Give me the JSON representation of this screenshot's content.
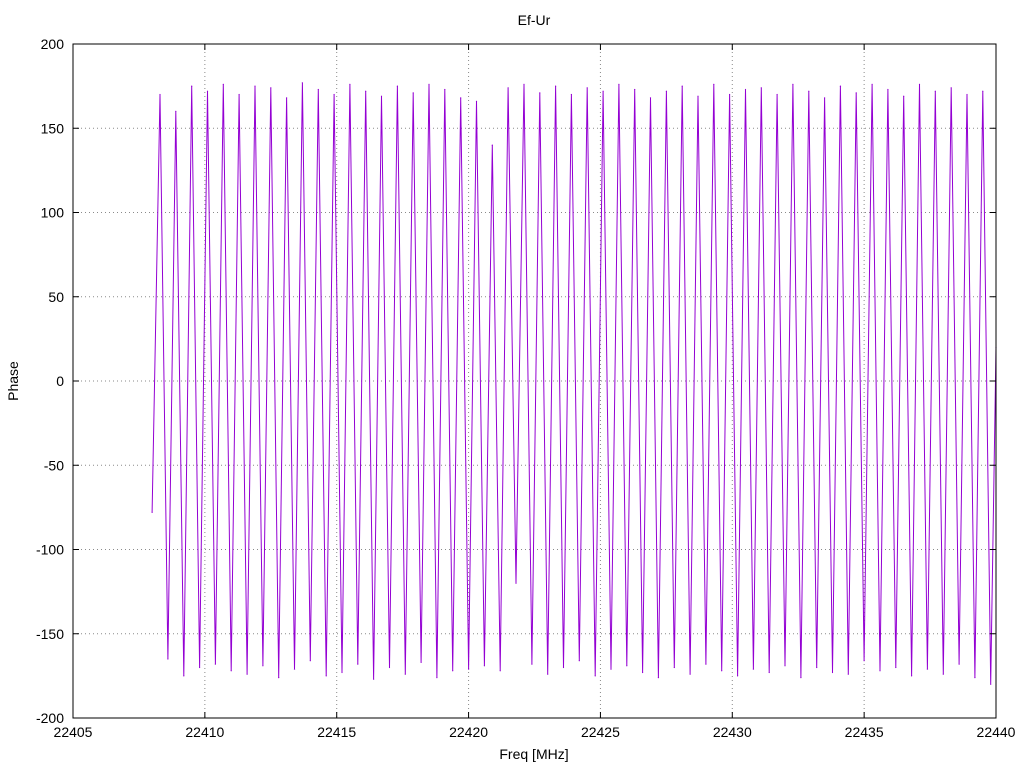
{
  "chart_data": {
    "type": "line",
    "title": "Ef-Ur",
    "xlabel": "Freq [MHz]",
    "ylabel": "Phase",
    "xlim": [
      22405,
      22440
    ],
    "ylim": [
      -200,
      200
    ],
    "xticks": [
      22405,
      22410,
      22415,
      22420,
      22425,
      22430,
      22435,
      22440
    ],
    "yticks": [
      -200,
      -150,
      -100,
      -50,
      0,
      50,
      100,
      150,
      200
    ],
    "grid": true,
    "line_color": "#9400d3",
    "series": [
      {
        "name": "",
        "x": [
          22408.0,
          22408.3,
          22408.6,
          22408.9,
          22409.2,
          22409.5,
          22409.8,
          22410.1,
          22410.4,
          22410.7,
          22411.0,
          22411.3,
          22411.6,
          22411.9,
          22412.2,
          22412.5,
          22412.8,
          22413.1,
          22413.4,
          22413.7,
          22414.0,
          22414.3,
          22414.6,
          22414.9,
          22415.2,
          22415.5,
          22415.8,
          22416.1,
          22416.4,
          22416.7,
          22417.0,
          22417.3,
          22417.6,
          22417.9,
          22418.2,
          22418.5,
          22418.8,
          22419.1,
          22419.4,
          22419.7,
          22420.0,
          22420.3,
          22420.6,
          22420.9,
          22421.2,
          22421.5,
          22421.8,
          22422.1,
          22422.4,
          22422.7,
          22423.0,
          22423.3,
          22423.6,
          22423.9,
          22424.2,
          22424.5,
          22424.8,
          22425.1,
          22425.4,
          22425.7,
          22426.0,
          22426.3,
          22426.6,
          22426.9,
          22427.2,
          22427.5,
          22427.8,
          22428.1,
          22428.4,
          22428.7,
          22429.0,
          22429.3,
          22429.6,
          22429.9,
          22430.2,
          22430.5,
          22430.8,
          22431.1,
          22431.4,
          22431.7,
          22432.0,
          22432.3,
          22432.6,
          22432.9,
          22433.2,
          22433.5,
          22433.8,
          22434.1,
          22434.4,
          22434.7,
          22435.0,
          22435.3,
          22435.6,
          22435.9,
          22436.2,
          22436.5,
          22436.8,
          22437.1,
          22437.4,
          22437.7,
          22438.0,
          22438.3,
          22438.6,
          22438.9,
          22439.2,
          22439.5,
          22439.8,
          22440.0
        ],
        "y": [
          -78,
          170,
          -165,
          160,
          -175,
          175,
          -170,
          172,
          -168,
          176,
          -172,
          170,
          -174,
          175,
          -169,
          174,
          -176,
          168,
          -171,
          177,
          -166,
          173,
          -175,
          170,
          -173,
          176,
          -168,
          172,
          -177,
          169,
          -170,
          175,
          -174,
          171,
          -167,
          176,
          -176,
          173,
          -172,
          168,
          -171,
          166,
          -169,
          140,
          -172,
          174,
          -120,
          176,
          -168,
          171,
          -174,
          175,
          -170,
          170,
          -166,
          174,
          -175,
          172,
          -171,
          176,
          -169,
          173,
          -173,
          168,
          -176,
          172,
          -170,
          175,
          -174,
          169,
          -168,
          176,
          -172,
          170,
          -175,
          173,
          -171,
          174,
          -173,
          170,
          -169,
          176,
          -176,
          172,
          -170,
          168,
          -173,
          175,
          -174,
          171,
          -166,
          176,
          -172,
          173,
          -170,
          169,
          -175,
          176,
          -171,
          172,
          -174,
          174,
          -168,
          170,
          -176,
          172,
          -180,
          20
        ]
      }
    ]
  }
}
